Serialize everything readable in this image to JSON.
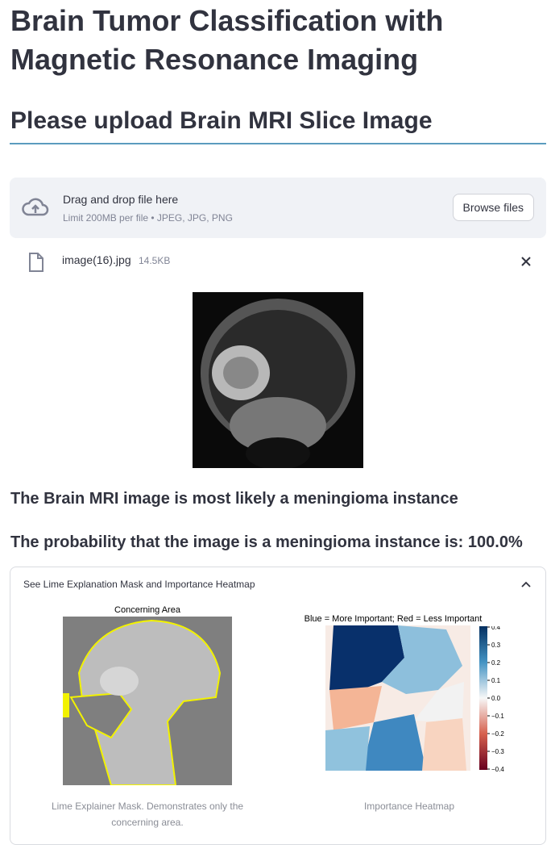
{
  "header": {
    "title": "Brain Tumor Classification with Magnetic Resonance Imaging",
    "subtitle": "Please upload Brain MRI Slice Image"
  },
  "uploader": {
    "prompt": "Drag and drop file here",
    "limits": "Limit 200MB per file • JPEG, JPG, PNG",
    "button": "Browse files"
  },
  "file": {
    "name": "image(16).jpg",
    "size": "14.5KB"
  },
  "result": {
    "prediction": "The Brain MRI image is most likely a meningioma instance",
    "probability": "The probability that the image is a meningioma instance is: 100.0%"
  },
  "expander": {
    "label": "See Lime Explanation Mask and Importance Heatmap",
    "mask": {
      "title": "Concerning Area",
      "caption": "Lime Explainer Mask. Demonstrates only the concerning area."
    },
    "heatmap": {
      "title": "Blue = More Important; Red = Less Important",
      "caption": "Importance Heatmap",
      "colorbar_ticks": [
        "0.4",
        "0.3",
        "0.2",
        "0.1",
        "0.0",
        "−0.1",
        "−0.2",
        "−0.3",
        "−0.4"
      ]
    }
  }
}
